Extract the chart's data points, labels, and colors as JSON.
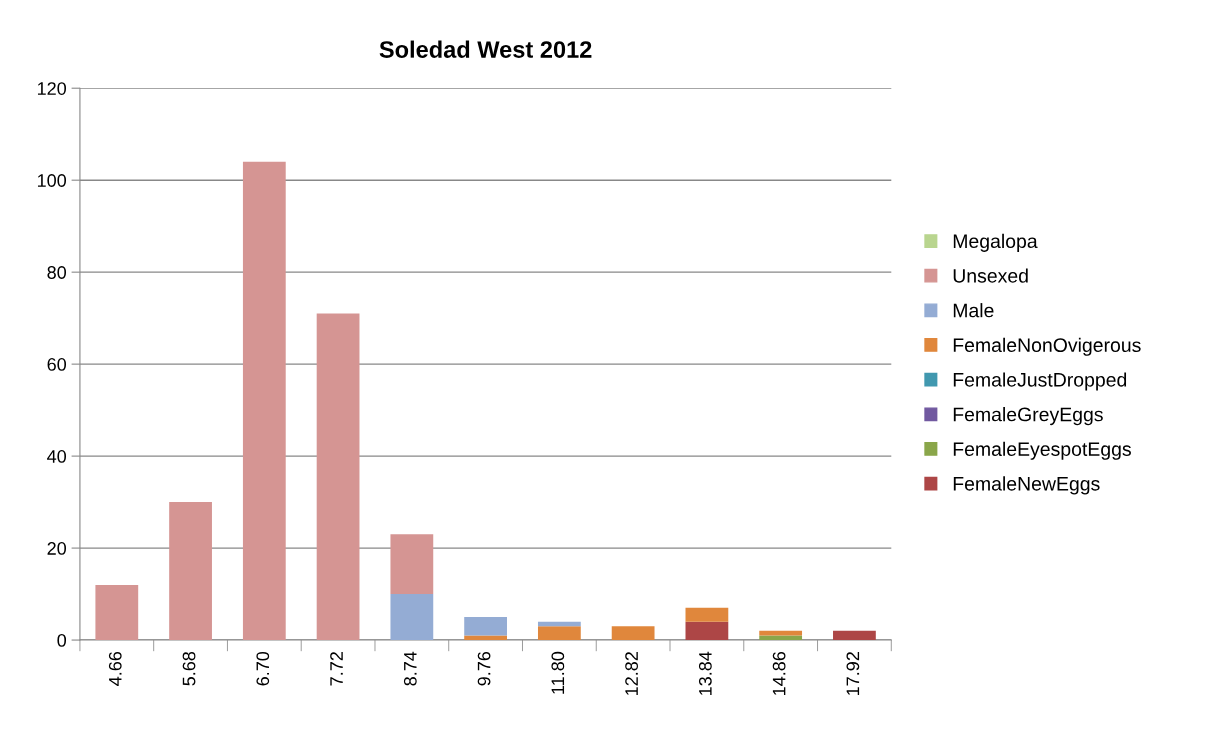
{
  "chart_data": {
    "type": "bar",
    "title": "Soledad West 2012",
    "stacked": true,
    "categories": [
      "4.66",
      "5.68",
      "6.70",
      "7.72",
      "8.74",
      "9.76",
      "11.80",
      "12.82",
      "13.84",
      "14.86",
      "17.92"
    ],
    "series": [
      {
        "name": "FemaleNewEggs",
        "color": "#ad4646",
        "values": [
          0,
          0,
          0,
          0,
          0,
          0,
          0,
          0,
          4,
          0,
          2
        ]
      },
      {
        "name": "FemaleEyespotEggs",
        "color": "#8aa64a",
        "values": [
          0,
          0,
          0,
          0,
          0,
          0,
          0,
          0,
          0,
          1,
          0
        ]
      },
      {
        "name": "FemaleGreyEggs",
        "color": "#7159a0",
        "values": [
          0,
          0,
          0,
          0,
          0,
          0,
          0,
          0,
          0,
          0,
          0
        ]
      },
      {
        "name": "FemaleJustDropped",
        "color": "#4198af",
        "values": [
          0,
          0,
          0,
          0,
          0,
          0,
          0,
          0,
          0,
          0,
          0
        ]
      },
      {
        "name": "FemaleNonOvigerous",
        "color": "#e0873c",
        "values": [
          0,
          0,
          0,
          0,
          0,
          1,
          3,
          3,
          3,
          1,
          0
        ]
      },
      {
        "name": "Male",
        "color": "#94acd4",
        "values": [
          0,
          0,
          0,
          0,
          10,
          4,
          1,
          0,
          0,
          0,
          0
        ]
      },
      {
        "name": "Unsexed",
        "color": "#d59593",
        "values": [
          12,
          30,
          104,
          71,
          13,
          0,
          0,
          0,
          0,
          0,
          0
        ]
      },
      {
        "name": "Megalopa",
        "color": "#b9d58f",
        "values": [
          0,
          0,
          0,
          0,
          0,
          0,
          0,
          0,
          0,
          0,
          0
        ]
      }
    ],
    "ylim": [
      0,
      120
    ],
    "yticks": [
      0,
      20,
      40,
      60,
      80,
      100,
      120
    ],
    "grid": "y",
    "legend": "right"
  }
}
